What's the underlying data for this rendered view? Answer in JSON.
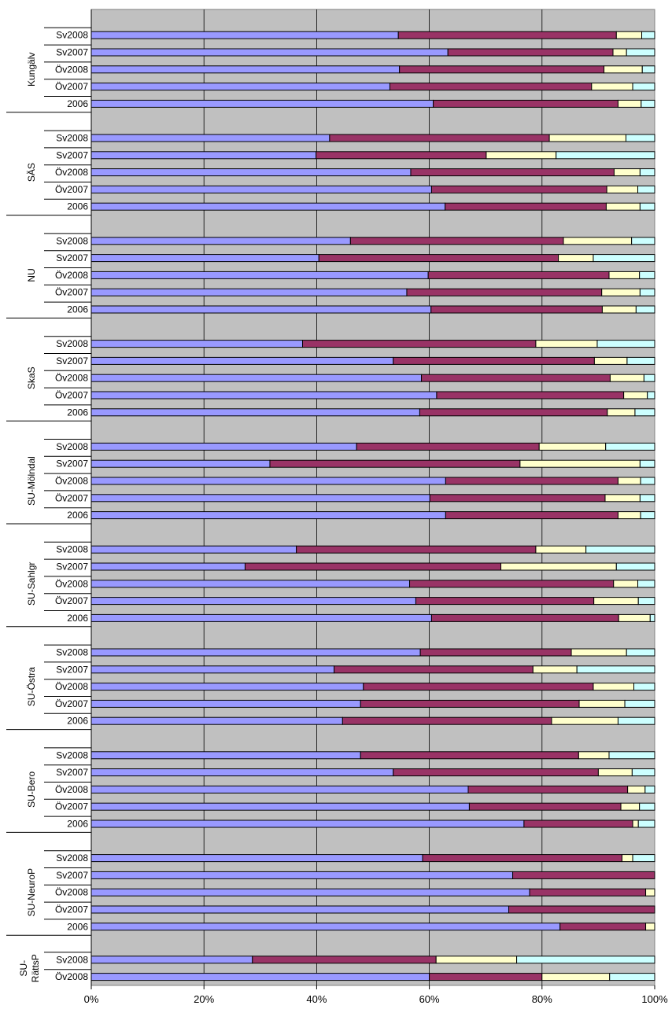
{
  "chart_data": {
    "type": "bar",
    "orientation": "horizontal",
    "stacked": "percent",
    "grid": true,
    "legend": "none",
    "xlim": [
      0,
      100
    ],
    "x_ticks": [
      "0%",
      "20%",
      "40%",
      "60%",
      "80%",
      "100%"
    ],
    "colors": {
      "plot_background": "#c0c0c0",
      "series": [
        "#9999ff",
        "#993366",
        "#ffffcc",
        "#ccffff"
      ],
      "outline": "#000000"
    },
    "groups": [
      {
        "label": "Kungälv",
        "bars": [
          {
            "label": "Sv2008",
            "values": [
              54.5,
              38.7,
              4.5,
              2.3
            ]
          },
          {
            "label": "Sv2007",
            "values": [
              63.3,
              29.3,
              2.4,
              5.0
            ]
          },
          {
            "label": "Öv2008",
            "values": [
              54.7,
              36.3,
              6.8,
              2.2
            ]
          },
          {
            "label": "Öv2007",
            "values": [
              53.0,
              35.8,
              7.3,
              3.9
            ]
          },
          {
            "label": "2006",
            "values": [
              60.7,
              32.8,
              4.1,
              2.4
            ]
          }
        ]
      },
      {
        "label": "SÄS",
        "bars": [
          {
            "label": "Sv2008",
            "values": [
              42.3,
              39.0,
              13.6,
              5.1
            ]
          },
          {
            "label": "Sv2007",
            "values": [
              39.9,
              30.2,
              12.4,
              17.5
            ]
          },
          {
            "label": "Öv2008",
            "values": [
              56.7,
              36.1,
              4.6,
              2.6
            ]
          },
          {
            "label": "Öv2007",
            "values": [
              60.4,
              31.1,
              5.5,
              3.0
            ]
          },
          {
            "label": "2006",
            "values": [
              62.8,
              28.6,
              6.0,
              2.6
            ]
          }
        ]
      },
      {
        "label": "NU",
        "bars": [
          {
            "label": "Sv2008",
            "values": [
              46.0,
              37.8,
              12.1,
              4.1
            ]
          },
          {
            "label": "Sv2007",
            "values": [
              40.4,
              42.5,
              6.2,
              10.9
            ]
          },
          {
            "label": "Öv2008",
            "values": [
              59.8,
              32.1,
              5.4,
              2.7
            ]
          },
          {
            "label": "Öv2007",
            "values": [
              56.0,
              34.6,
              6.8,
              2.6
            ]
          },
          {
            "label": "2006",
            "values": [
              60.3,
              30.4,
              6.0,
              3.3
            ]
          }
        ]
      },
      {
        "label": "SkaS",
        "bars": [
          {
            "label": "Sv2008",
            "values": [
              37.5,
              41.4,
              10.9,
              10.2
            ]
          },
          {
            "label": "Sv2007",
            "values": [
              53.6,
              35.7,
              5.8,
              4.9
            ]
          },
          {
            "label": "Öv2008",
            "values": [
              58.6,
              33.5,
              6.0,
              1.9
            ]
          },
          {
            "label": "Öv2007",
            "values": [
              61.3,
              33.2,
              4.2,
              1.3
            ]
          },
          {
            "label": "2006",
            "values": [
              58.3,
              33.3,
              4.9,
              3.5
            ]
          }
        ]
      },
      {
        "label": "SU-Mölndal",
        "bars": [
          {
            "label": "Sv2008",
            "values": [
              47.1,
              32.4,
              11.8,
              8.7
            ]
          },
          {
            "label": "Sv2007",
            "values": [
              31.7,
              44.4,
              21.3,
              2.6
            ]
          },
          {
            "label": "Öv2008",
            "values": [
              62.9,
              30.6,
              4.0,
              2.5
            ]
          },
          {
            "label": "Öv2007",
            "values": [
              60.1,
              31.1,
              6.2,
              2.6
            ]
          },
          {
            "label": "2006",
            "values": [
              62.9,
              30.6,
              4.0,
              2.5
            ]
          }
        ]
      },
      {
        "label": "SU-Sahlgr",
        "bars": [
          {
            "label": "Sv2008",
            "values": [
              36.4,
              42.5,
              8.9,
              12.2
            ]
          },
          {
            "label": "Sv2007",
            "values": [
              27.3,
              45.4,
              20.5,
              6.8
            ]
          },
          {
            "label": "Öv2008",
            "values": [
              56.5,
              36.2,
              4.3,
              3.0
            ]
          },
          {
            "label": "Öv2007",
            "values": [
              57.6,
              31.6,
              7.9,
              2.9
            ]
          },
          {
            "label": "2006",
            "values": [
              60.4,
              33.2,
              5.6,
              0.8
            ]
          }
        ]
      },
      {
        "label": "SU-Östra",
        "bars": [
          {
            "label": "Sv2008",
            "values": [
              58.4,
              26.8,
              9.8,
              5.0
            ]
          },
          {
            "label": "Sv2007",
            "values": [
              43.1,
              35.3,
              7.8,
              13.8
            ]
          },
          {
            "label": "Öv2008",
            "values": [
              48.3,
              40.8,
              7.2,
              3.7
            ]
          },
          {
            "label": "Öv2007",
            "values": [
              47.8,
              38.8,
              8.1,
              5.3
            ]
          },
          {
            "label": "2006",
            "values": [
              44.6,
              37.1,
              11.8,
              6.5
            ]
          }
        ]
      },
      {
        "label": "SU-Bero",
        "bars": [
          {
            "label": "Sv2008",
            "values": [
              47.8,
              38.7,
              5.4,
              8.1
            ]
          },
          {
            "label": "Sv2007",
            "values": [
              53.6,
              36.4,
              6.0,
              4.0
            ]
          },
          {
            "label": "Öv2008",
            "values": [
              66.9,
              28.3,
              3.1,
              1.7
            ]
          },
          {
            "label": "Öv2007",
            "values": [
              67.1,
              26.9,
              3.3,
              2.7
            ]
          },
          {
            "label": "2006",
            "values": [
              76.8,
              19.3,
              1.0,
              2.9
            ]
          }
        ]
      },
      {
        "label": "SU-NeuroP",
        "bars": [
          {
            "label": "Sv2008",
            "values": [
              58.8,
              35.4,
              1.9,
              3.9
            ]
          },
          {
            "label": "Sv2007",
            "values": [
              74.8,
              25.2,
              0,
              0
            ]
          },
          {
            "label": "Öv2008",
            "values": [
              77.8,
              20.6,
              1.6,
              0
            ]
          },
          {
            "label": "Öv2007",
            "values": [
              74.1,
              25.9,
              0,
              0
            ]
          },
          {
            "label": "2006",
            "values": [
              83.2,
              15.2,
              1.6,
              0
            ]
          }
        ]
      },
      {
        "label": "SU-RättsP",
        "label_lines": [
          "SU-",
          "RättsP"
        ],
        "bars": [
          {
            "label": "Sv2008",
            "values": [
              28.6,
              32.6,
              14.3,
              24.5
            ]
          },
          {
            "label": "Öv2008",
            "values": [
              60.0,
              20.0,
              12.0,
              8.0
            ]
          }
        ]
      }
    ]
  }
}
